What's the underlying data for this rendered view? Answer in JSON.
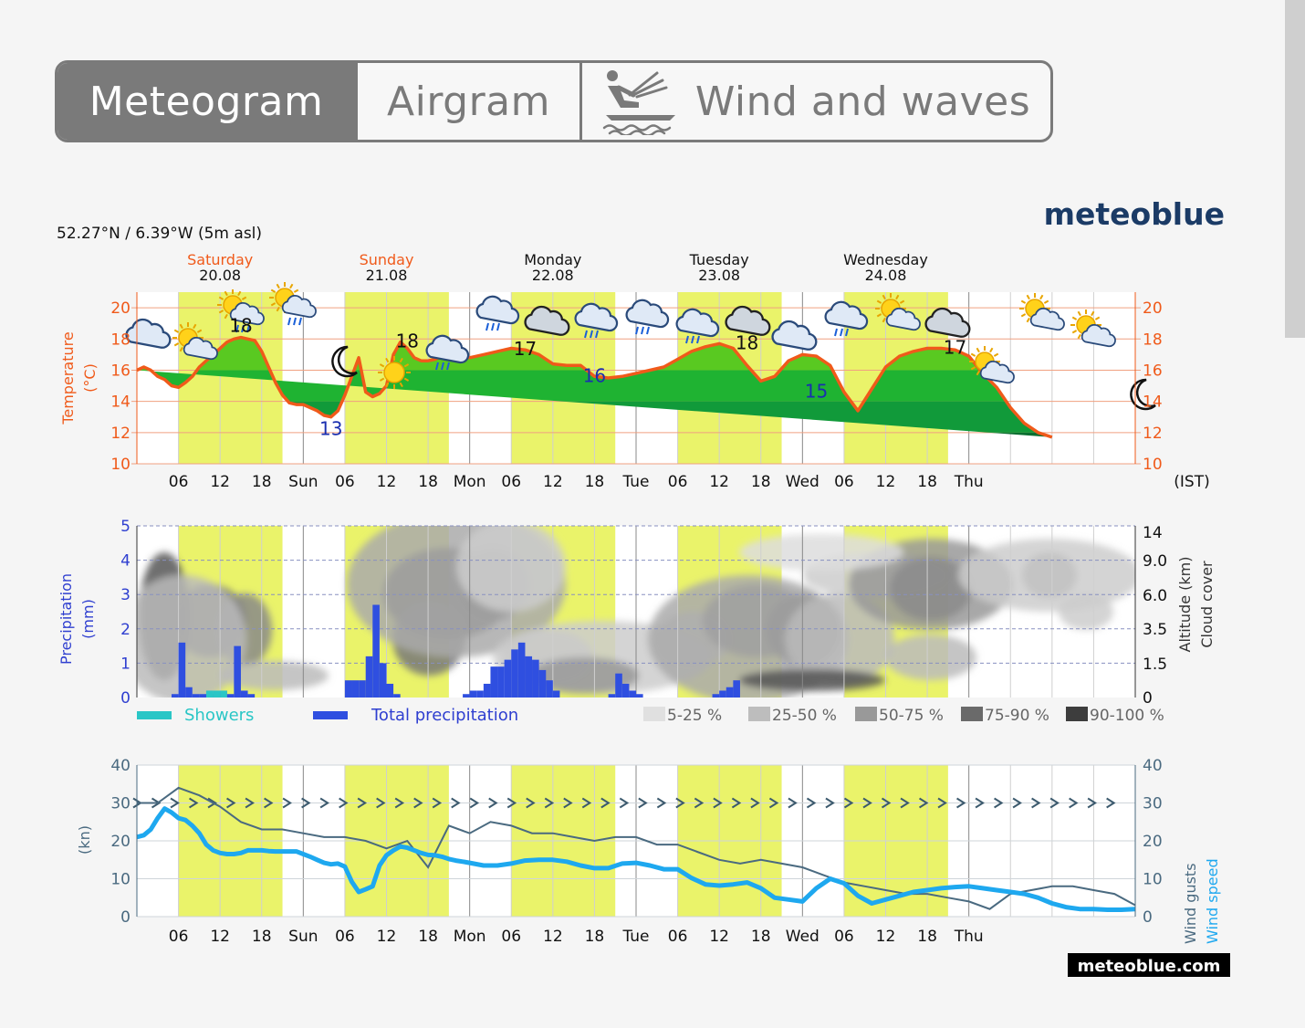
{
  "tabs": [
    {
      "label": "Meteogram",
      "active": true
    },
    {
      "label": "Airgram",
      "active": false
    },
    {
      "label": "Wind and waves",
      "active": false,
      "icon": "kitesurf-icon"
    }
  ],
  "brand": {
    "logo": "meteoblue",
    "footer": "meteoblue.com",
    "color": "#1b3b66"
  },
  "location": "52.27°N / 6.39°W (5m asl)",
  "days": [
    {
      "name": "Saturday",
      "date": "20.08",
      "weekend": true
    },
    {
      "name": "Sunday",
      "date": "21.08",
      "weekend": true
    },
    {
      "name": "Monday",
      "date": "22.08",
      "weekend": false
    },
    {
      "name": "Tuesday",
      "date": "23.08",
      "weekend": false
    },
    {
      "name": "Wednesday",
      "date": "24.08",
      "weekend": false
    }
  ],
  "x_tick_labels": [
    "06",
    "12",
    "18",
    "Sun",
    "06",
    "12",
    "18",
    "Mon",
    "06",
    "12",
    "18",
    "Tue",
    "06",
    "12",
    "18",
    "Wed",
    "06",
    "12",
    "18",
    "Thu"
  ],
  "timezone": "(IST)",
  "chart_data": [
    {
      "type": "area",
      "ylabel": "Temperature\n(°C)",
      "ylim": [
        10,
        21
      ],
      "yticks": [
        10,
        12,
        14,
        16,
        18,
        20
      ],
      "x_unit": "hours since Sat 00:00",
      "x": [
        0,
        1,
        2,
        3,
        4,
        5,
        6,
        7,
        8,
        9,
        10,
        11,
        12,
        13,
        14,
        15,
        16,
        17,
        18,
        19,
        20,
        21,
        22,
        23,
        24,
        25,
        26,
        27,
        28,
        29,
        30,
        31,
        32,
        33,
        34,
        35,
        36,
        37,
        38,
        39,
        40,
        41,
        42,
        43,
        44,
        45,
        46,
        47,
        48,
        50,
        52,
        54,
        56,
        58,
        60,
        62,
        64,
        66,
        68,
        70,
        72,
        74,
        76,
        78,
        80,
        82,
        84,
        86,
        88,
        90,
        92,
        94,
        96,
        98,
        100,
        102,
        104,
        106,
        108,
        110,
        112,
        114,
        116,
        118,
        120,
        122,
        124,
        126,
        128,
        130,
        132,
        134,
        136,
        138,
        140,
        142,
        144
      ],
      "temperature": [
        16.0,
        16.2,
        16.0,
        15.6,
        15.4,
        15.0,
        14.9,
        15.2,
        15.6,
        16.2,
        16.6,
        17.0,
        17.4,
        17.8,
        18.0,
        18.1,
        18.0,
        17.9,
        17.2,
        16.2,
        15.2,
        14.4,
        13.9,
        13.8,
        13.8,
        13.6,
        13.4,
        13.1,
        13.0,
        13.4,
        14.4,
        15.6,
        16.8,
        14.6,
        14.3,
        14.5,
        15.0,
        17.0,
        17.8,
        17.4,
        16.8,
        16.6,
        16.6,
        16.7,
        16.9,
        16.9,
        16.9,
        16.9,
        16.8,
        17.0,
        17.2,
        17.4,
        17.3,
        17.0,
        16.4,
        16.3,
        16.3,
        15.6,
        15.5,
        15.6,
        15.8,
        16.0,
        16.2,
        16.7,
        17.2,
        17.5,
        17.7,
        17.4,
        16.3,
        15.3,
        15.6,
        16.6,
        17.0,
        16.9,
        16.3,
        14.6,
        13.4,
        14.8,
        16.2,
        16.9,
        17.2,
        17.4,
        17.4,
        17.3,
        16.9,
        15.8,
        14.9,
        13.6,
        12.6,
        12.0,
        11.7
      ]
    },
    {
      "type": "bar",
      "ylabel": "Precipitation\n(mm)",
      "ylim": [
        0,
        5
      ],
      "y2label": "Altitude (km)  Cloud cover",
      "y2_tick_labels": [
        "0",
        "1.5",
        "3.5",
        "6.0",
        "9.0",
        "14"
      ],
      "series": [
        {
          "name": "Showers",
          "color": "#2ac6c6",
          "x": [
            10,
            11,
            12
          ],
          "values": [
            0.2,
            0.2,
            0.2
          ]
        },
        {
          "name": "Total precipitation",
          "color": "#2f4fe0",
          "x": [
            5,
            6,
            7,
            8,
            9,
            10,
            11,
            12,
            13,
            14,
            15,
            16,
            30,
            31,
            32,
            33,
            34,
            35,
            36,
            37,
            38,
            39,
            40,
            41,
            42,
            43,
            44,
            45,
            46,
            47,
            48,
            49,
            50,
            51,
            52,
            53,
            54,
            55,
            56,
            57,
            58,
            59,
            60,
            61,
            62,
            63,
            64,
            65,
            66,
            67,
            68,
            69,
            70,
            71,
            72,
            73,
            74,
            75,
            76,
            77,
            78,
            79,
            80,
            81,
            82,
            83,
            84,
            85,
            86,
            87,
            88,
            89,
            90,
            91,
            92,
            93,
            94,
            95,
            96,
            97,
            98,
            99,
            100,
            101,
            102,
            103,
            104,
            105,
            106,
            107,
            108
          ],
          "values": [
            0.1,
            1.6,
            0.3,
            0.1,
            0.1,
            0.2,
            0.1,
            0.2,
            0.1,
            1.5,
            0.2,
            0.1,
            0.5,
            0.5,
            0.5,
            1.2,
            2.7,
            1.0,
            0.4,
            0.1,
            0,
            0,
            0,
            0,
            0,
            0,
            0,
            0,
            0,
            0.1,
            0.2,
            0.2,
            0.4,
            0.9,
            0.9,
            1.1,
            1.4,
            1.6,
            1.2,
            1.1,
            0.8,
            0.5,
            0.2,
            0,
            0,
            0,
            0,
            0,
            0,
            0,
            0.1,
            0.7,
            0.4,
            0.2,
            0.1,
            0,
            0,
            0,
            0,
            0,
            0,
            0,
            0,
            0,
            0,
            0.1,
            0.2,
            0.3,
            0.5,
            0,
            0,
            0,
            0,
            0,
            0,
            0,
            0,
            0,
            0,
            0,
            0,
            0,
            0,
            0,
            0,
            0,
            0,
            0,
            0,
            0,
            0
          ]
        }
      ],
      "cloud_cover_legend": [
        "5-25 %",
        "25-50 %",
        "50-75 %",
        "75-90 %",
        "90-100 %"
      ]
    },
    {
      "type": "line",
      "ylabel": "(kn)",
      "ylim": [
        0,
        40
      ],
      "yticks": [
        0,
        10,
        20,
        30,
        40
      ],
      "series": [
        {
          "name": "Wind gusts",
          "color": "#4a6a80",
          "x": [
            0,
            3,
            6,
            9,
            12,
            15,
            18,
            21,
            24,
            27,
            30,
            33,
            36,
            39,
            42,
            45,
            48,
            51,
            54,
            57,
            60,
            63,
            66,
            69,
            72,
            75,
            78,
            81,
            84,
            87,
            90,
            93,
            96,
            99,
            102,
            105,
            108,
            111,
            114,
            117,
            120,
            123,
            126,
            129,
            132,
            135,
            138,
            141,
            144
          ],
          "values": [
            30,
            30,
            34,
            32,
            29,
            25,
            23,
            23,
            22,
            21,
            21,
            20,
            18,
            20,
            13,
            24,
            22,
            25,
            24,
            22,
            22,
            21,
            20,
            21,
            21,
            19,
            19,
            17,
            15,
            14,
            15,
            14,
            13,
            11,
            9,
            8,
            7,
            6,
            6,
            5,
            4,
            2,
            6,
            7,
            8,
            8,
            7,
            6,
            3
          ]
        },
        {
          "name": "Wind speed",
          "color": "#1ea8ef",
          "x": [
            0,
            1,
            2,
            3,
            4,
            5,
            6,
            7,
            8,
            9,
            10,
            11,
            12,
            13,
            14,
            15,
            16,
            17,
            18,
            19,
            20,
            21,
            22,
            23,
            24,
            25,
            26,
            27,
            28,
            29,
            30,
            31,
            32,
            33,
            34,
            35,
            36,
            37,
            38,
            39,
            40,
            41,
            42,
            43,
            44,
            45,
            46,
            47,
            48,
            50,
            52,
            54,
            56,
            58,
            60,
            62,
            64,
            66,
            68,
            70,
            72,
            74,
            76,
            78,
            80,
            82,
            84,
            86,
            88,
            90,
            92,
            94,
            96,
            98,
            100,
            102,
            104,
            106,
            108,
            110,
            112,
            114,
            116,
            118,
            120,
            122,
            124,
            126,
            128,
            130,
            132,
            134,
            136,
            138,
            140,
            142,
            144
          ],
          "values": [
            21,
            21.5,
            23,
            26,
            28.5,
            27.5,
            26,
            25.5,
            24,
            22,
            19,
            17.5,
            16.8,
            16.5,
            16.5,
            16.8,
            17.5,
            17.5,
            17.5,
            17.3,
            17.2,
            17.2,
            17.2,
            17.2,
            16.5,
            15.8,
            15.0,
            14.2,
            13.8,
            14.0,
            13.2,
            9.2,
            6.5,
            7.2,
            8.0,
            13.5,
            16.2,
            17.5,
            18.5,
            18.2,
            17.5,
            16.8,
            16.3,
            16.2,
            15.8,
            15.2,
            14.8,
            14.5,
            14.2,
            13.5,
            13.5,
            14.0,
            14.8,
            15.0,
            15.0,
            14.5,
            13.5,
            12.8,
            12.8,
            14.0,
            14.2,
            13.5,
            12.5,
            12.5,
            10.2,
            8.5,
            8.2,
            8.5,
            9.0,
            7.5,
            5.0,
            4.5,
            4.0,
            7.5,
            10.0,
            8.8,
            5.5,
            3.5,
            4.5,
            5.5,
            6.5,
            7.0,
            7.5,
            7.8,
            8.0,
            7.5,
            7.0,
            6.5,
            6.0,
            5.0,
            3.5,
            2.5,
            2.0,
            2.0,
            1.8,
            1.8,
            2.0
          ]
        }
      ]
    }
  ]
}
